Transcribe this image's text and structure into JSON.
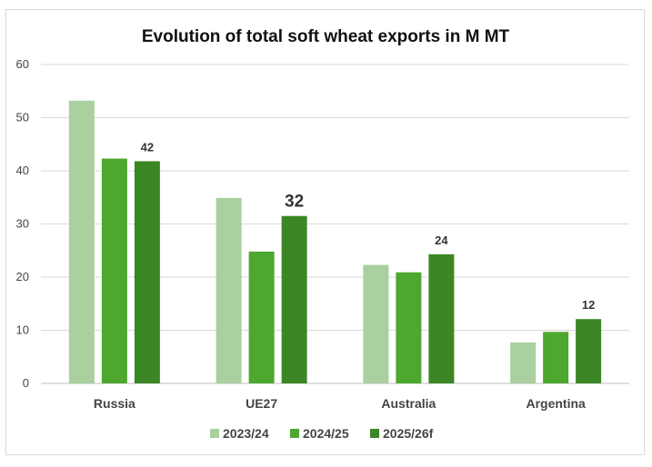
{
  "chart_data": {
    "type": "bar",
    "title": "Evolution of total soft wheat exports in M MT",
    "xlabel": "",
    "ylabel": "",
    "ylim": [
      0,
      60
    ],
    "yticks": [
      0,
      10,
      20,
      30,
      40,
      50,
      60
    ],
    "grid": true,
    "legend_position": "bottom",
    "categories": [
      "Russia",
      "UE27",
      "Australia",
      "Argentina"
    ],
    "series": [
      {
        "name": "2023/24",
        "color": "#a9d09e",
        "values": [
          53.2,
          34.9,
          22.3,
          7.7
        ]
      },
      {
        "name": "2024/25",
        "color": "#4ea72e",
        "values": [
          42.3,
          24.8,
          20.9,
          9.7
        ]
      },
      {
        "name": "2025/26f",
        "color": "#3b8725",
        "values": [
          41.8,
          31.5,
          24.3,
          12.1
        ]
      }
    ],
    "data_labels": [
      {
        "series": "2025/26f",
        "category": "Russia",
        "text": "42"
      },
      {
        "series": "2025/26f",
        "category": "UE27",
        "text": "32"
      },
      {
        "series": "2025/26f",
        "category": "Australia",
        "text": "24"
      },
      {
        "series": "2025/26f",
        "category": "Argentina",
        "text": "12"
      }
    ]
  }
}
